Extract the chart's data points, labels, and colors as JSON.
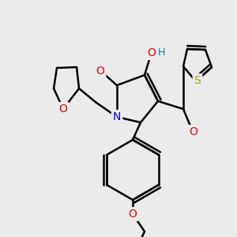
{
  "background_color": "#ebebeb",
  "atom_colors": {
    "C": "#000000",
    "N": "#0000ee",
    "O": "#ee0000",
    "S": "#aaaa00",
    "H": "#008888"
  },
  "bond_color": "#000000",
  "bond_width": 1.8
}
